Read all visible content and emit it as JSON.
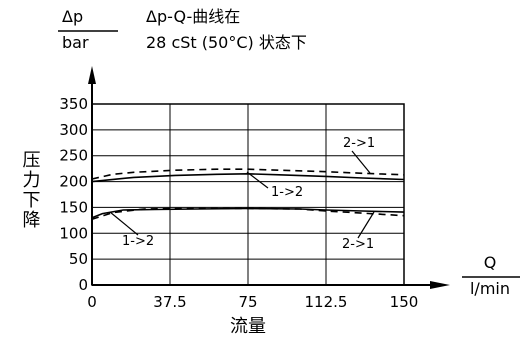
{
  "chart_data": {
    "type": "line",
    "title": "Δp-Q-曲线在",
    "subtitle": "28 cSt (50°C) 状态下",
    "ylabel": "压力下降",
    "yunit_top": "Δp",
    "yunit_bottom": "bar",
    "xlabel": "流量",
    "xunit_top": "Q",
    "xunit_bottom": "l/min",
    "xlim": [
      0,
      150
    ],
    "ylim": [
      0,
      350
    ],
    "x_ticks": [
      0,
      37.5,
      75,
      112.5,
      150
    ],
    "x_tick_labels": [
      "0",
      "37.5",
      "75",
      "112.5",
      "150"
    ],
    "y_ticks": [
      0,
      50,
      100,
      150,
      200,
      250,
      300,
      350
    ],
    "y_tick_labels": [
      "0",
      "50",
      "100",
      "150",
      "200",
      "250",
      "300",
      "350"
    ],
    "grid": true,
    "series": [
      {
        "name": "2->1",
        "style": "dashed",
        "x": [
          0,
          10,
          20,
          40,
          60,
          75,
          90,
          112.5,
          130,
          150
        ],
        "y": [
          205,
          214,
          218,
          222,
          224,
          224,
          222,
          219,
          216,
          213
        ]
      },
      {
        "name": "1->2",
        "style": "solid",
        "x": [
          0,
          20,
          40,
          60,
          75,
          90,
          112.5,
          130,
          150
        ],
        "y": [
          200,
          208,
          212,
          214,
          215,
          213,
          210,
          207,
          204
        ]
      },
      {
        "name": "1->2",
        "style": "solid",
        "x": [
          0,
          5,
          15,
          30,
          50,
          75,
          100,
          112.5,
          130,
          150
        ],
        "y": [
          130,
          138,
          145,
          146,
          147,
          148,
          147,
          145,
          143,
          141
        ]
      },
      {
        "name": "2->1",
        "style": "dashed",
        "x": [
          0,
          10,
          25,
          40,
          60,
          75,
          100,
          112.5,
          130,
          150
        ],
        "y": [
          127,
          140,
          147,
          148,
          148,
          148,
          147,
          143,
          139,
          134
        ]
      }
    ],
    "annotations": [
      {
        "text": "2->1",
        "series": 0
      },
      {
        "text": "1->2",
        "series": 1
      },
      {
        "text": "1->2",
        "series": 2
      },
      {
        "text": "2->1",
        "series": 3
      }
    ]
  }
}
